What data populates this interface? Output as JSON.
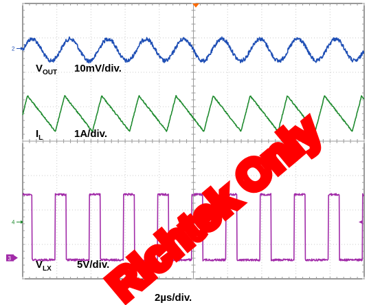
{
  "chart_data": {
    "type": "line",
    "time_base": "2µs/div.",
    "x_divisions": 10,
    "y_divisions": 8,
    "grid": true,
    "trigger_marker_color": "#ff6a00",
    "channels": [
      {
        "id": "vout",
        "label_main": "V",
        "label_sub": "OUT",
        "scale": "10mV/div.",
        "marker": "2",
        "color": "#1f4fb5",
        "shape": "ripple",
        "periods": 9,
        "phase": 0.0,
        "center_div": 1.35,
        "amplitude_div": 0.32,
        "noise_div": 0.06
      },
      {
        "id": "il",
        "label_main": "I",
        "label_sub": "L",
        "scale": "1A/div.",
        "marker": "",
        "color": "#1e8a2e",
        "shape": "triangle",
        "periods": 9.2,
        "phase": 0.12,
        "center_div": 3.2,
        "amplitude_div": 0.52,
        "noise_div": 0.02
      },
      {
        "id": "vlx",
        "label_main": "V",
        "label_sub": "LX",
        "scale": "5V/div.",
        "marker": "4",
        "color": "#a12ba8",
        "shape": "pulse",
        "periods": 10,
        "phase": 0.05,
        "duty": 0.32,
        "high_div": 5.55,
        "low_div": 7.45,
        "noise_div": 0.03
      }
    ],
    "ground_marker": "3",
    "ground_marker_color": "#a12ba8"
  }
}
